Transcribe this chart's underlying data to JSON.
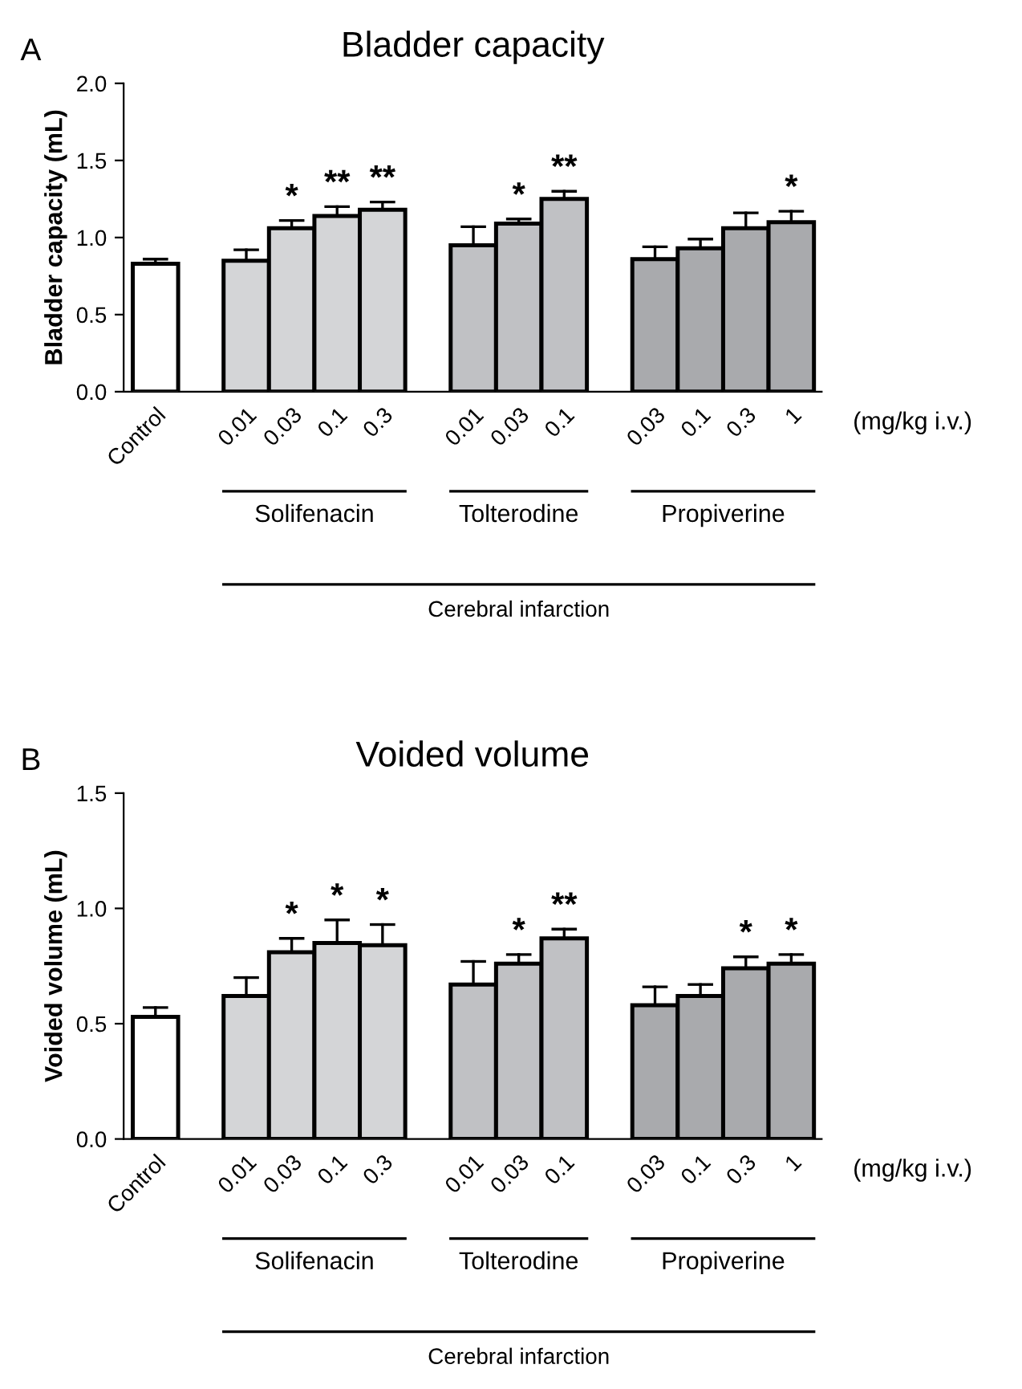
{
  "chart_data": [
    {
      "type": "bar",
      "title": "Bladder capacity",
      "ylabel": "Bladder capacity (mL)",
      "categories": [
        "Control",
        null,
        "0.01",
        "0.03",
        "0.1",
        "0.3",
        null,
        "0.01",
        "0.03",
        "0.1",
        null,
        "0.03",
        "0.1",
        "0.3",
        "1"
      ],
      "values": [
        0.83,
        null,
        0.85,
        1.06,
        1.14,
        1.18,
        null,
        0.95,
        1.09,
        1.25,
        null,
        0.86,
        0.93,
        1.06,
        1.1
      ],
      "errors": [
        0.03,
        null,
        0.07,
        0.05,
        0.06,
        0.05,
        null,
        0.12,
        0.03,
        0.05,
        null,
        0.08,
        0.06,
        0.1,
        0.07
      ],
      "value_labels": [
        null,
        null,
        null,
        "*",
        "**",
        "**",
        null,
        null,
        "*",
        "**",
        null,
        null,
        null,
        null,
        "*"
      ],
      "colors": [
        "#ffffff",
        null,
        "#d4d5d7",
        "#d4d5d7",
        "#d4d5d7",
        "#d4d5d7",
        null,
        "#c0c1c4",
        "#c0c1c4",
        "#c0c1c4",
        null,
        "#a9aaad",
        "#a9aaad",
        "#a9aaad",
        "#a9aaad"
      ],
      "ylim": [
        0,
        2.0
      ],
      "yticks": [
        {
          "value": 0,
          "label": "0.0"
        },
        {
          "value": 0.5,
          "label": "0.5"
        },
        {
          "value": 1.0,
          "label": "1.0"
        },
        {
          "value": 1.5,
          "label": "1.5"
        },
        {
          "value": 2.0,
          "label": "2.0"
        }
      ],
      "grid": false,
      "annotations": [
        "A",
        "(mg/kg i.v.)",
        "Solifenacin",
        "Tolterodine",
        "Propiverine",
        "Cerebral infarction"
      ]
    },
    {
      "type": "bar",
      "title": "Voided volume",
      "ylabel": "Voided volume (mL)",
      "categories": [
        "Control",
        null,
        "0.01",
        "0.03",
        "0.1",
        "0.3",
        null,
        "0.01",
        "0.03",
        "0.1",
        null,
        "0.03",
        "0.1",
        "0.3",
        "1"
      ],
      "values": [
        0.53,
        null,
        0.62,
        0.81,
        0.85,
        0.84,
        null,
        0.67,
        0.76,
        0.87,
        null,
        0.58,
        0.62,
        0.74,
        0.76
      ],
      "errors": [
        0.04,
        null,
        0.08,
        0.06,
        0.1,
        0.09,
        null,
        0.1,
        0.04,
        0.04,
        null,
        0.08,
        0.05,
        0.05,
        0.04
      ],
      "value_labels": [
        null,
        null,
        null,
        "*",
        "*",
        "*",
        null,
        null,
        "*",
        "**",
        null,
        null,
        null,
        "*",
        "*"
      ],
      "colors": [
        "#ffffff",
        null,
        "#d4d5d7",
        "#d4d5d7",
        "#d4d5d7",
        "#d4d5d7",
        null,
        "#c0c1c4",
        "#c0c1c4",
        "#c0c1c4",
        null,
        "#a9aaad",
        "#a9aaad",
        "#a9aaad",
        "#a9aaad"
      ],
      "ylim": [
        0,
        1.5
      ],
      "yticks": [
        {
          "value": 0,
          "label": "0.0"
        },
        {
          "value": 0.5,
          "label": "0.5"
        },
        {
          "value": 1.0,
          "label": "1.0"
        },
        {
          "value": 1.5,
          "label": "1.5"
        }
      ],
      "grid": false,
      "annotations": [
        "B",
        "(mg/kg i.v.)",
        "Solifenacin",
        "Tolterodine",
        "Propiverine",
        "Cerebral infarction"
      ]
    }
  ]
}
